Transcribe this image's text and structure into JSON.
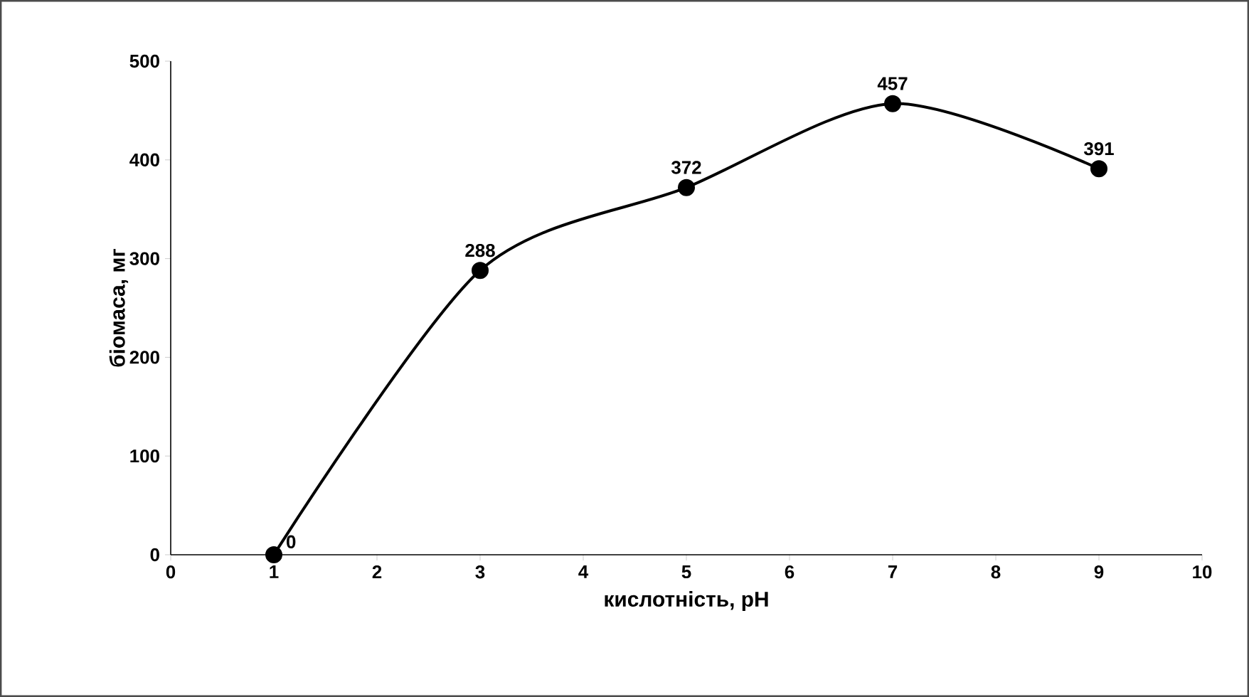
{
  "chart_data": {
    "type": "line",
    "xlabel": "кислотність, pH",
    "ylabel": "біомаса, мг",
    "x": [
      1,
      3,
      5,
      7,
      9
    ],
    "values": [
      0,
      288,
      372,
      457,
      391
    ],
    "color": "#000000",
    "xlim": [
      0,
      10
    ],
    "xticks": [
      0,
      1,
      2,
      3,
      4,
      5,
      6,
      7,
      8,
      9,
      10
    ],
    "ylim": [
      0,
      500
    ],
    "yticks": [
      0,
      100,
      200,
      300,
      400,
      500
    ],
    "grid": false,
    "marker": "circle",
    "line_style": "solid",
    "data_labels": true
  }
}
